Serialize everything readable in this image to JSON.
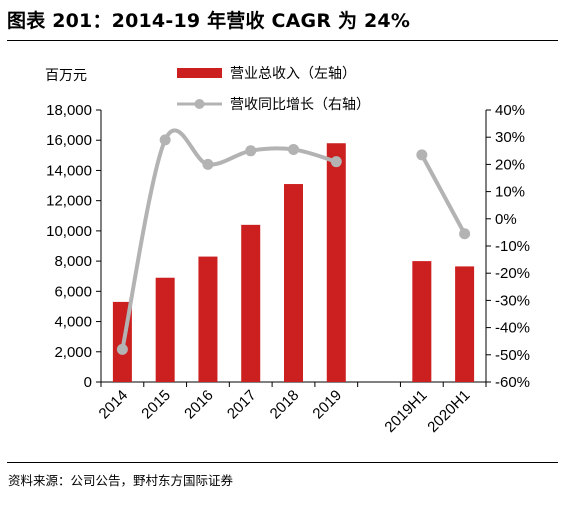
{
  "title": "图表 201：2014-19 年营收 CAGR 为 24%",
  "source": "资料来源：公司公告，野村东方国际证券",
  "chart_data": {
    "type": "bar",
    "categories": [
      "2014",
      "2015",
      "2016",
      "2017",
      "2018",
      "2019",
      "",
      "2019H1",
      "2020H1"
    ],
    "series": [
      {
        "name": "营业总收入（左轴）",
        "type": "bar",
        "axis": "left",
        "color": "#cc1f1f",
        "values": [
          5300,
          6900,
          8300,
          10400,
          13100,
          15800,
          null,
          8000,
          7650
        ]
      },
      {
        "name": "营收同比增长（右轴）",
        "type": "line",
        "axis": "right",
        "color": "#b3b3b3",
        "values": [
          -48,
          29,
          20,
          25,
          25.5,
          21,
          null,
          23.5,
          -5.5
        ]
      }
    ],
    "left_axis": {
      "unit_label": "百万元",
      "min": 0,
      "max": 18000,
      "step": 2000,
      "ticks": [
        "0",
        "2,000",
        "4,000",
        "6,000",
        "8,000",
        "10,000",
        "12,000",
        "14,000",
        "16,000",
        "18,000"
      ]
    },
    "right_axis": {
      "min": -60,
      "max": 40,
      "step": 10,
      "ticks": [
        "-60%",
        "-50%",
        "-40%",
        "-30%",
        "-20%",
        "-10%",
        "0%",
        "10%",
        "20%",
        "30%",
        "40%"
      ]
    },
    "grid": false,
    "legend_position": "top"
  }
}
